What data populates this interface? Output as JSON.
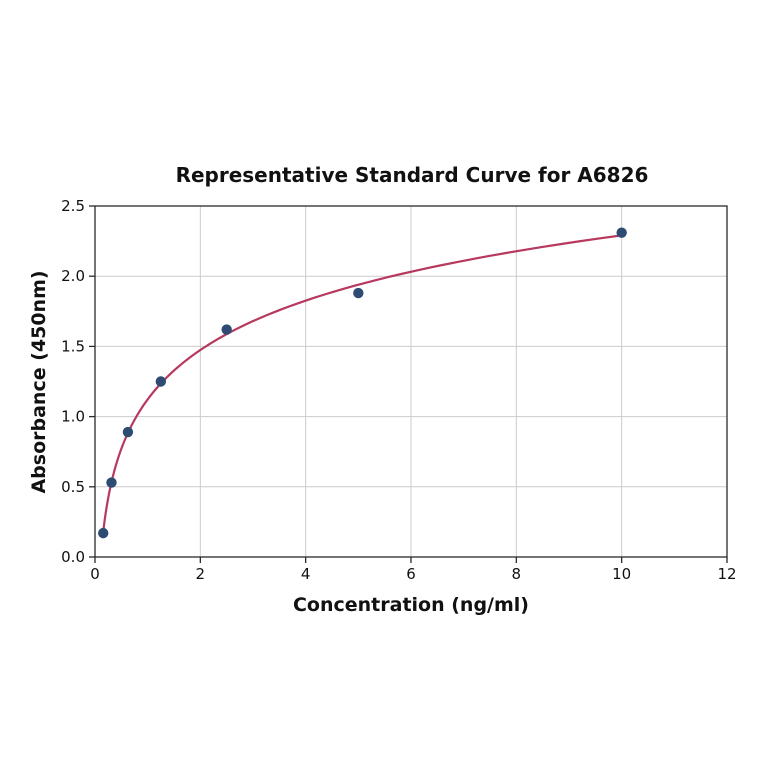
{
  "figure": {
    "background": "#ffffff"
  },
  "chart_data": {
    "type": "scatter",
    "title": "Representative Standard Curve for A6826",
    "xlabel": "Concentration (ng/ml)",
    "ylabel": "Absorbance (450nm)",
    "xlim": [
      0,
      12
    ],
    "ylim": [
      0,
      2.5
    ],
    "x_ticks": [
      0,
      2,
      4,
      6,
      8,
      10,
      12
    ],
    "x_tick_labels": [
      "0",
      "2",
      "4",
      "6",
      "8",
      "10",
      "12"
    ],
    "y_ticks": [
      0,
      0.5,
      1,
      1.5,
      2,
      2.5
    ],
    "y_tick_labels": [
      "0.0",
      "0.5",
      "1.0",
      "1.5",
      "2.0",
      "2.5"
    ],
    "grid": true,
    "legend": "none",
    "fit": "logarithmic",
    "x": [
      0.156,
      0.313,
      0.625,
      1.25,
      2.5,
      5,
      10
    ],
    "y": [
      0.17,
      0.53,
      0.89,
      1.25,
      1.62,
      1.88,
      2.31
    ],
    "colors": {
      "curve": "#b7395e",
      "marker": "#2d4b73",
      "grid": "#cccccc",
      "spine": "#2a2a2a",
      "text": "#111111"
    }
  }
}
